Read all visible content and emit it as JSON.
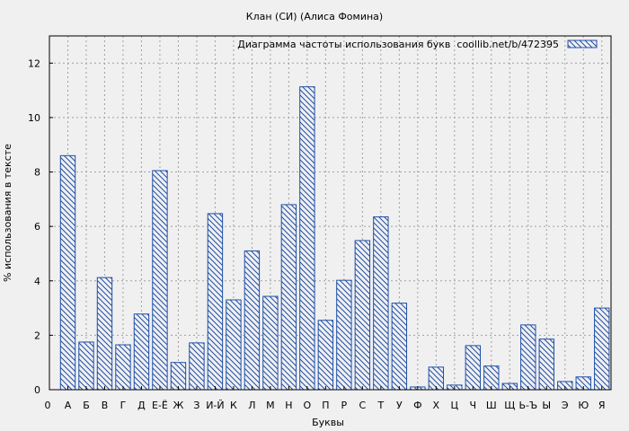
{
  "chart_data": {
    "type": "bar",
    "title": "Клан (СИ) (Алиса Фомина)",
    "xlabel": "Буквы",
    "ylabel": "% использования в тексте",
    "legend": "Диаграмма частоты использования букв  coollib.net/b/472395",
    "legend_position": "top-right",
    "grid": true,
    "ylim": [
      0,
      13
    ],
    "yticks": [
      0,
      2,
      4,
      6,
      8,
      10,
      12
    ],
    "x_start_label": "0",
    "categories": [
      "А",
      "Б",
      "В",
      "Г",
      "Д",
      "Е-Ё",
      "Ж",
      "З",
      "И-Й",
      "К",
      "Л",
      "М",
      "Н",
      "О",
      "П",
      "Р",
      "С",
      "Т",
      "У",
      "Ф",
      "Х",
      "Ц",
      "Ч",
      "Ш",
      "Щ",
      "Ь-Ъ",
      "Ы",
      "Э",
      "Ю",
      "Я"
    ],
    "values": [
      8.6,
      1.75,
      4.12,
      1.65,
      2.78,
      8.05,
      1.0,
      1.72,
      6.47,
      3.3,
      5.1,
      3.43,
      6.8,
      11.13,
      2.55,
      4.02,
      5.48,
      6.35,
      3.18,
      0.1,
      0.83,
      0.17,
      1.62,
      0.87,
      0.23,
      2.38,
      1.86,
      0.3,
      0.47,
      3.0
    ],
    "colors": {
      "bar_stroke": "#1f4fa8",
      "hatch": "#1f4fa8",
      "background": "#f0f0f0"
    }
  }
}
